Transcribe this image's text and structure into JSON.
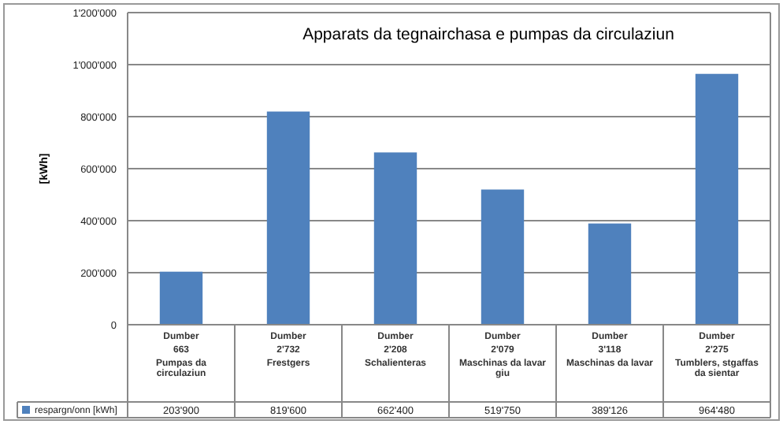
{
  "chart_data": {
    "type": "bar",
    "title": "Apparats da tegnairchasa e pumpas da circulaziun",
    "ylabel": "[kWh]",
    "categories": [
      "Dumber\n663\nPumpas da circulaziun",
      "Dumber\n2'732\nFrestgers",
      "Dumber\n2'208\nSchalienteras",
      "Dumber\n2'079\nMaschinas da lavar giu",
      "Dumber\n3'118\nMaschinas da lavar",
      "Dumber\n2'275\nTumblers, stgaffas da sientar"
    ],
    "series": [
      {
        "name": "respargn/onn [kWh]",
        "color": "#4f81bd",
        "values": [
          203900,
          819600,
          662400,
          519750,
          389126,
          964480
        ],
        "value_labels": [
          "203'900",
          "819'600",
          "662'400",
          "519'750",
          "389'126",
          "964'480"
        ]
      }
    ],
    "ylim": [
      0,
      1200000
    ],
    "yticks": [
      0,
      {
        "value": 200000,
        "label": "200'000"
      },
      {
        "value": 400000,
        "label": "400'000"
      },
      {
        "value": 600000,
        "label": "600'000"
      },
      {
        "value": 800000,
        "label": "800'000"
      },
      {
        "value": 1000000,
        "label": "1'000'000"
      },
      {
        "value": 1200000,
        "label": "1'200'000"
      }
    ],
    "grid": "y",
    "legend": "bottom"
  }
}
